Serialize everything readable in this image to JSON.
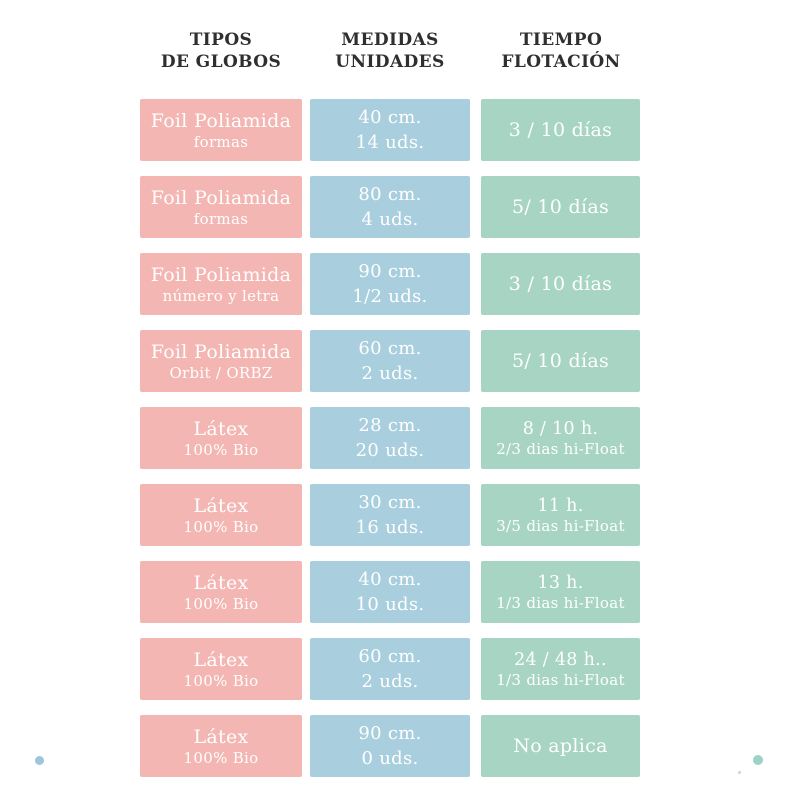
{
  "headers": [
    {
      "line1": "TIPOS",
      "line2": "DE GLOBOS"
    },
    {
      "line1": "MEDIDAS",
      "line2": "UNIDADES"
    },
    {
      "line1": "TIEMPO",
      "line2": "FLOTACIÓN"
    }
  ],
  "rows": [
    {
      "tipo_main": "Foil Poliamida",
      "tipo_sub": "formas",
      "med_main": "40 cm.",
      "med_sub": "14 uds.",
      "time_main": "3 / 10 días",
      "time_sub": ""
    },
    {
      "tipo_main": "Foil Poliamida",
      "tipo_sub": "formas",
      "med_main": "80 cm.",
      "med_sub": "4 uds.",
      "time_main": "5/ 10 días",
      "time_sub": ""
    },
    {
      "tipo_main": "Foil Poliamida",
      "tipo_sub": "número y letra",
      "med_main": "90 cm.",
      "med_sub": "1/2 uds.",
      "time_main": "3 / 10 días",
      "time_sub": ""
    },
    {
      "tipo_main": "Foil Poliamida",
      "tipo_sub": "Orbit / ORBZ",
      "med_main": "60 cm.",
      "med_sub": "2 uds.",
      "time_main": "5/ 10 días",
      "time_sub": ""
    },
    {
      "tipo_main": "Látex",
      "tipo_sub": "100% Bio",
      "med_main": "28 cm.",
      "med_sub": "20 uds.",
      "time_main": "8 / 10 h.",
      "time_sub": "2/3 dias hi-Float"
    },
    {
      "tipo_main": "Látex",
      "tipo_sub": "100% Bio",
      "med_main": "30 cm.",
      "med_sub": "16 uds.",
      "time_main": "11 h.",
      "time_sub": "3/5 dias hi-Float"
    },
    {
      "tipo_main": "Látex",
      "tipo_sub": "100% Bio",
      "med_main": "40 cm.",
      "med_sub": "10 uds.",
      "time_main": "13 h.",
      "time_sub": "1/3 dias hi-Float"
    },
    {
      "tipo_main": "Látex",
      "tipo_sub": "100% Bio",
      "med_main": "60 cm.",
      "med_sub": "2 uds.",
      "time_main": "24 / 48 h..",
      "time_sub": "1/3 dias hi-Float"
    },
    {
      "tipo_main": "Látex",
      "tipo_sub": "100% Bio",
      "med_main": "90 cm.",
      "med_sub": "0 uds.",
      "time_main": "No aplica",
      "time_sub": ""
    }
  ],
  "theme": {
    "pink": "#f3b6b2",
    "blue": "#a9cedd",
    "green": "#a7d4c3",
    "header_text": "#2f2f2f",
    "cell_text": "#ffffff",
    "dot_blue": "#9cc6db",
    "dot_teal": "#9ed2c6"
  },
  "chart_data": {
    "type": "table",
    "columns": [
      "TIPOS DE GLOBOS",
      "MEDIDAS UNIDADES",
      "TIEMPO FLOTACIÓN"
    ],
    "rows": [
      [
        "Foil Poliamida formas",
        "40 cm. 14 uds.",
        "3 / 10 días"
      ],
      [
        "Foil Poliamida formas",
        "80 cm. 4 uds.",
        "5/ 10 días"
      ],
      [
        "Foil Poliamida número y letra",
        "90 cm. 1/2 uds.",
        "3 / 10 días"
      ],
      [
        "Foil Poliamida Orbit / ORBZ",
        "60 cm. 2 uds.",
        "5/ 10 días"
      ],
      [
        "Látex 100% Bio",
        "28 cm. 20 uds.",
        "8 / 10 h. 2/3 dias hi-Float"
      ],
      [
        "Látex 100% Bio",
        "30 cm. 16 uds.",
        "11 h. 3/5 dias hi-Float"
      ],
      [
        "Látex 100% Bio",
        "40 cm. 10 uds.",
        "13 h. 1/3 dias hi-Float"
      ],
      [
        "Látex 100% Bio",
        "60 cm. 2 uds.",
        "24 / 48 h.. 1/3 dias hi-Float"
      ],
      [
        "Látex 100% Bio",
        "90 cm. 0 uds.",
        "No aplica"
      ]
    ],
    "layout": {
      "grid": false,
      "legend": "none",
      "cell_colors_by_column": [
        "#f3b6b2",
        "#a9cedd",
        "#a7d4c3"
      ]
    }
  }
}
